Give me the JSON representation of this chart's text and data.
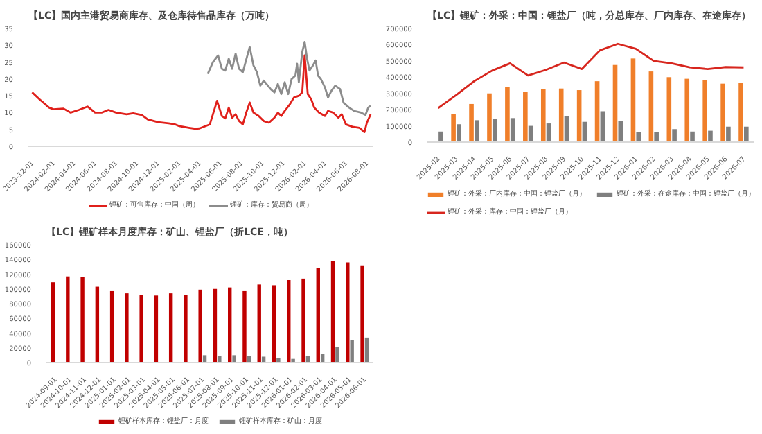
{
  "chart_data": [
    {
      "type": "line",
      "title": "【LC】国内主港贸易商库存、及仓库待售品库存（万吨）",
      "legend": "bottom",
      "line_style": "solid",
      "xlim": [
        "2023-11-20",
        "2026-08-20"
      ],
      "xticks": [
        "2023-12-01",
        "2024-02-01",
        "2024-04-01",
        "2024-06-01",
        "2024-08-01",
        "2024-10-01",
        "2024-12-01",
        "2025-02-01",
        "2025-04-01",
        "2025-06-01",
        "2025-08-01",
        "2025-10-01",
        "2025-12-01",
        "2026-02-01",
        "2026-04-01",
        "2026-06-01",
        "2026-08-01"
      ],
      "ylim": [
        0,
        35
      ],
      "yticks": [
        0,
        5,
        10,
        15,
        20,
        25,
        30,
        35
      ],
      "series": [
        {
          "name": "锂矿：可售库存：中国（周）",
          "color": "#e0201b",
          "x": [
            "2023-12-01",
            "2023-12-22",
            "2024-01-19",
            "2024-02-01",
            "2024-03-01",
            "2024-03-22",
            "2024-04-15",
            "2024-05-10",
            "2024-06-01",
            "2024-06-20",
            "2024-07-10",
            "2024-08-01",
            "2024-09-01",
            "2024-09-20",
            "2024-10-15",
            "2024-11-01",
            "2024-12-01",
            "2025-01-01",
            "2025-01-20",
            "2025-02-01",
            "2025-03-01",
            "2025-03-20",
            "2025-04-01",
            "2025-05-01",
            "2025-05-10",
            "2025-05-22",
            "2025-06-05",
            "2025-06-15",
            "2025-06-25",
            "2025-07-05",
            "2025-07-15",
            "2025-07-25",
            "2025-08-05",
            "2025-08-15",
            "2025-08-25",
            "2025-09-05",
            "2025-09-20",
            "2025-10-05",
            "2025-10-20",
            "2025-11-05",
            "2025-11-15",
            "2025-11-25",
            "2025-12-05",
            "2025-12-20",
            "2026-01-01",
            "2026-01-15",
            "2026-01-25",
            "2026-02-01",
            "2026-02-10",
            "2026-02-20",
            "2026-03-01",
            "2026-03-15",
            "2026-04-01",
            "2026-04-10",
            "2026-04-25",
            "2026-05-10",
            "2026-05-20",
            "2026-06-01",
            "2026-06-20",
            "2026-07-10",
            "2026-07-25",
            "2026-08-01",
            "2026-08-12"
          ],
          "values": [
            16,
            14,
            11.5,
            11,
            11.2,
            10,
            10.8,
            11.8,
            10,
            10,
            10.8,
            10,
            9.5,
            9.8,
            9.3,
            8,
            7.2,
            6.8,
            6.5,
            6,
            5.5,
            5.2,
            5.3,
            6.5,
            9.5,
            13.5,
            9,
            8.3,
            11.5,
            8.5,
            9.5,
            7.5,
            6.5,
            10,
            13,
            10,
            9,
            7.5,
            7,
            8.5,
            10,
            9,
            10.5,
            12.5,
            14.5,
            15,
            16,
            27,
            15.5,
            14,
            11.5,
            10,
            9,
            10.5,
            10,
            8.5,
            9.5,
            6.5,
            5.8,
            5.5,
            4.2,
            7,
            9.5
          ]
        },
        {
          "name": "锂矿：库存：贸易商（周）",
          "color": "#8c8c8c",
          "x": [
            "2025-04-25",
            "2025-05-10",
            "2025-05-25",
            "2025-06-05",
            "2025-06-15",
            "2025-06-25",
            "2025-07-05",
            "2025-07-15",
            "2025-07-25",
            "2025-08-05",
            "2025-08-25",
            "2025-09-05",
            "2025-09-15",
            "2025-09-25",
            "2025-10-05",
            "2025-10-25",
            "2025-11-05",
            "2025-11-15",
            "2025-11-25",
            "2025-12-05",
            "2025-12-15",
            "2025-12-25",
            "2026-01-05",
            "2026-01-10",
            "2026-01-15",
            "2026-01-25",
            "2026-02-01",
            "2026-02-08",
            "2026-02-15",
            "2026-02-25",
            "2026-03-05",
            "2026-03-12",
            "2026-03-20",
            "2026-04-01",
            "2026-04-10",
            "2026-04-20",
            "2026-05-01",
            "2026-05-15",
            "2026-05-25",
            "2026-06-10",
            "2026-06-25",
            "2026-07-15",
            "2026-07-28",
            "2026-08-05",
            "2026-08-12"
          ],
          "values": [
            21.5,
            25,
            27,
            23,
            22.5,
            26,
            23,
            27.5,
            23,
            22,
            29.5,
            24,
            22,
            18,
            19.5,
            17,
            16,
            18.5,
            15.5,
            19,
            15.5,
            20,
            21,
            24.5,
            19,
            28,
            31,
            26,
            22.5,
            24,
            25.5,
            21,
            20,
            17.5,
            14.5,
            16.5,
            18,
            17,
            13,
            11.5,
            10.5,
            10,
            9.3,
            11.5,
            12
          ]
        }
      ]
    },
    {
      "type": "bar",
      "title": "【LC】锂矿：外采：中国：锂盐厂（吨，分总库存、厂内库存、在途库存）",
      "legend": "bottom",
      "line_style": "solid",
      "categories": [
        "2025-02",
        "2025-03",
        "2025-04",
        "2025-05",
        "2025-06",
        "2025-07",
        "2025-08",
        "2025-09",
        "2025-10",
        "2025-11",
        "2025-12",
        "2026-01",
        "2026-02",
        "2026-03",
        "2026-04",
        "2026-05",
        "2026-06",
        "2026-07"
      ],
      "ylim": [
        0,
        700000
      ],
      "yticks": [
        0,
        100000,
        200000,
        300000,
        400000,
        500000,
        600000,
        700000
      ],
      "series": [
        {
          "name": "锂矿：外采：厂内库存：中国：锂盐厂（月）",
          "color": "#f07f2a",
          "values": [
            null,
            175000,
            235000,
            300000,
            340000,
            310000,
            325000,
            330000,
            320000,
            375000,
            475000,
            515000,
            435000,
            400000,
            390000,
            380000,
            360000,
            365000
          ]
        },
        {
          "name": "锂矿：外采：在途库存：中国：锂盐厂（月）",
          "color": "#7f7f7f",
          "values": [
            65000,
            110000,
            135000,
            145000,
            148000,
            100000,
            115000,
            160000,
            125000,
            190000,
            130000,
            62000,
            62000,
            80000,
            65000,
            70000,
            95000,
            95000
          ]
        },
        {
          "name": "锂矿：外采：库存：中国：锂盐厂（月）",
          "color": "#d7261e",
          "type": "line",
          "values": [
            210000,
            290000,
            375000,
            440000,
            485000,
            410000,
            445000,
            490000,
            450000,
            565000,
            605000,
            575000,
            500000,
            485000,
            460000,
            450000,
            462000,
            460000
          ]
        }
      ]
    },
    {
      "type": "bar",
      "title": "【LC】锂矿样本月度库存：矿山、锂盐厂（折LCE，吨）",
      "legend": "bottom",
      "categories": [
        "2024-09-01",
        "2024-10-01",
        "2024-11-01",
        "2024-12-01",
        "2025-01-01",
        "2025-02-01",
        "2025-03-01",
        "2025-04-01",
        "2025-05-01",
        "2025-06-01",
        "2025-07-01",
        "2025-08-01",
        "2025-09-01",
        "2025-10-01",
        "2025-11-01",
        "2025-12-01",
        "2026-01-01",
        "2026-02-01",
        "2026-03-01",
        "2026-04-01",
        "2026-05-01",
        "2026-06-01"
      ],
      "ylim": [
        0,
        160000
      ],
      "yticks": [
        0,
        20000,
        40000,
        60000,
        80000,
        100000,
        120000,
        140000,
        160000
      ],
      "series": [
        {
          "name": "锂矿样本库存：锂盐厂：月度",
          "color": "#c00000",
          "values": [
            109000,
            117000,
            116000,
            103000,
            97000,
            94000,
            92000,
            91000,
            94000,
            92000,
            99000,
            100000,
            102000,
            97000,
            106000,
            105000,
            112000,
            114000,
            129000,
            138000,
            136000,
            132000
          ]
        },
        {
          "name": "锂矿样本库存：矿山：月度",
          "color": "#7f7f7f",
          "values": [
            null,
            null,
            null,
            null,
            null,
            null,
            null,
            null,
            null,
            null,
            10000,
            9000,
            10000,
            9000,
            8000,
            6000,
            5000,
            9000,
            12000,
            21000,
            31000,
            34000
          ]
        }
      ]
    }
  ]
}
